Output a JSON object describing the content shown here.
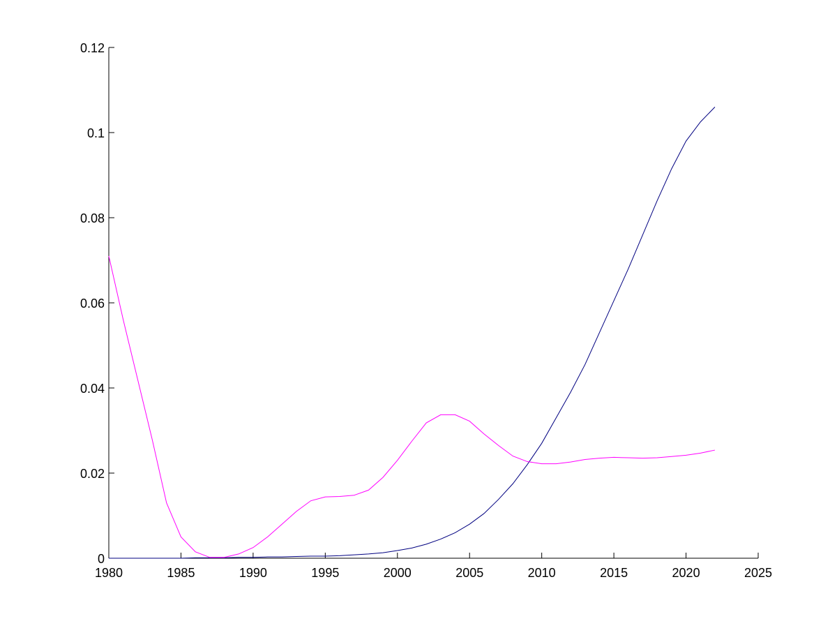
{
  "chart_data": {
    "type": "line",
    "title": "",
    "xlabel": "",
    "ylabel": "",
    "xlim": [
      1980,
      2025
    ],
    "ylim": [
      0,
      0.12
    ],
    "grid": false,
    "legend": "none",
    "x_ticks": [
      "1980",
      "1985",
      "1990",
      "1995",
      "2000",
      "2005",
      "2010",
      "2015",
      "2020",
      "2025"
    ],
    "y_ticks": [
      "0",
      "0.02",
      "0.04",
      "0.06",
      "0.08",
      "0.1",
      "0.12"
    ],
    "x": [
      1980,
      1981,
      1982,
      1983,
      1984,
      1985,
      1986,
      1987,
      1988,
      1989,
      1990,
      1991,
      1992,
      1993,
      1994,
      1995,
      1996,
      1997,
      1998,
      1999,
      2000,
      2001,
      2002,
      2003,
      2004,
      2005,
      2006,
      2007,
      2008,
      2009,
      2010,
      2011,
      2012,
      2013,
      2014,
      2015,
      2016,
      2017,
      2018,
      2019,
      2020,
      2021,
      2022
    ],
    "series": [
      {
        "color": "#000080",
        "values": [
          0.0,
          0.0,
          0.0,
          0.0,
          0.0,
          0.0,
          0.0001,
          0.0001,
          0.0001,
          0.0002,
          0.0002,
          0.0003,
          0.0003,
          0.0004,
          0.0005,
          0.0005,
          0.0006,
          0.0008,
          0.001,
          0.0013,
          0.0018,
          0.0024,
          0.0033,
          0.0045,
          0.006,
          0.008,
          0.0105,
          0.0138,
          0.0175,
          0.022,
          0.027,
          0.033,
          0.039,
          0.0455,
          0.053,
          0.0605,
          0.068,
          0.076,
          0.084,
          0.0915,
          0.098,
          0.1025,
          0.106
        ]
      },
      {
        "color": "#ff00ff",
        "values": [
          0.071,
          0.056,
          0.042,
          0.028,
          0.013,
          0.005,
          0.0015,
          0.0002,
          0.0002,
          0.001,
          0.0025,
          0.005,
          0.008,
          0.011,
          0.0135,
          0.0144,
          0.0145,
          0.0148,
          0.016,
          0.019,
          0.023,
          0.0275,
          0.0318,
          0.0337,
          0.0337,
          0.0322,
          0.0292,
          0.0265,
          0.024,
          0.0227,
          0.0222,
          0.0222,
          0.0226,
          0.0232,
          0.0235,
          0.0237,
          0.0236,
          0.0235,
          0.0236,
          0.0239,
          0.0242,
          0.0247,
          0.0254
        ]
      }
    ]
  }
}
